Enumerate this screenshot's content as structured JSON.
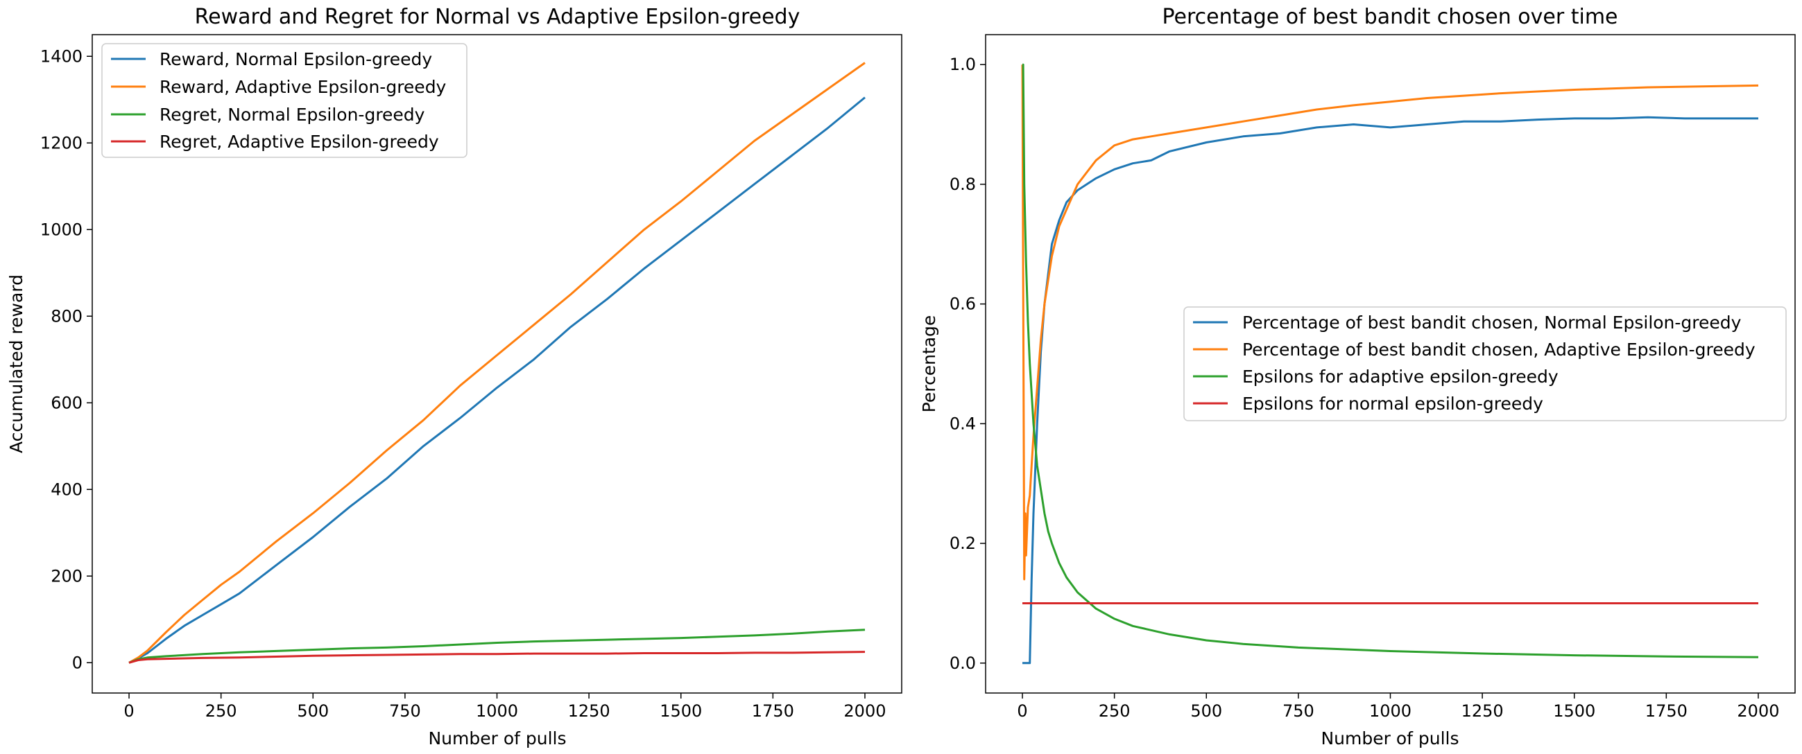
{
  "chart_data": [
    {
      "type": "line",
      "title": "Reward and Regret for Normal vs Adaptive Epsilon-greedy",
      "xlabel": "Number of pulls",
      "ylabel": "Accumulated reward",
      "xlim": [
        -100,
        2100
      ],
      "ylim": [
        -70,
        1450
      ],
      "xticks": [
        "0",
        "250",
        "500",
        "750",
        "1000",
        "1250",
        "1500",
        "1750",
        "2000"
      ],
      "yticks": [
        "0",
        "200",
        "400",
        "600",
        "800",
        "1000",
        "1200",
        "1400"
      ],
      "xtick_values": [
        0,
        250,
        500,
        750,
        1000,
        1250,
        1500,
        1750,
        2000
      ],
      "ytick_values": [
        0,
        200,
        400,
        600,
        800,
        1000,
        1200,
        1400
      ],
      "grid": false,
      "legend": "upper left",
      "series": [
        {
          "name": "Reward, Normal Epsilon-greedy",
          "color": "#1f77b4",
          "x": [
            0,
            25,
            50,
            100,
            150,
            200,
            250,
            300,
            400,
            500,
            600,
            700,
            800,
            900,
            1000,
            1100,
            1200,
            1300,
            1400,
            1500,
            1600,
            1700,
            1800,
            1900,
            2000
          ],
          "y": [
            0,
            10,
            22,
            55,
            85,
            110,
            135,
            160,
            225,
            290,
            360,
            425,
            500,
            565,
            635,
            700,
            775,
            840,
            910,
            975,
            1040,
            1105,
            1170,
            1235,
            1305
          ]
        },
        {
          "name": "Reward, Adaptive Epsilon-greedy",
          "color": "#ff7f0e",
          "x": [
            0,
            25,
            50,
            100,
            150,
            200,
            250,
            300,
            400,
            500,
            600,
            700,
            800,
            900,
            1000,
            1100,
            1200,
            1300,
            1400,
            1500,
            1600,
            1700,
            1800,
            1900,
            2000
          ],
          "y": [
            0,
            12,
            28,
            70,
            110,
            145,
            180,
            210,
            280,
            345,
            415,
            490,
            560,
            640,
            710,
            780,
            850,
            925,
            1000,
            1065,
            1135,
            1205,
            1265,
            1325,
            1385
          ]
        },
        {
          "name": "Regret, Normal Epsilon-greedy",
          "color": "#2ca02c",
          "x": [
            0,
            25,
            50,
            100,
            200,
            300,
            400,
            500,
            600,
            700,
            800,
            900,
            1000,
            1100,
            1200,
            1300,
            1400,
            1500,
            1600,
            1700,
            1800,
            1900,
            2000
          ],
          "y": [
            0,
            8,
            12,
            15,
            20,
            24,
            27,
            30,
            33,
            35,
            38,
            42,
            46,
            49,
            51,
            53,
            55,
            57,
            60,
            63,
            67,
            72,
            76
          ]
        },
        {
          "name": "Regret, Adaptive Epsilon-greedy",
          "color": "#d62728",
          "x": [
            0,
            25,
            50,
            100,
            200,
            300,
            400,
            500,
            600,
            700,
            800,
            900,
            1000,
            1100,
            1200,
            1300,
            1400,
            1500,
            1600,
            1700,
            1800,
            1900,
            2000
          ],
          "y": [
            0,
            6,
            8,
            9,
            11,
            12,
            14,
            16,
            17,
            18,
            19,
            20,
            20,
            21,
            21,
            21,
            22,
            22,
            22,
            23,
            23,
            24,
            25
          ]
        }
      ]
    },
    {
      "type": "line",
      "title": "Percentage of best bandit chosen over time",
      "xlabel": "Number of pulls",
      "ylabel": "Percentage",
      "xlim": [
        -100,
        2100
      ],
      "ylim": [
        -0.05,
        1.05
      ],
      "xticks": [
        "0",
        "250",
        "500",
        "750",
        "1000",
        "1250",
        "1500",
        "1750",
        "2000"
      ],
      "yticks": [
        "0.0",
        "0.2",
        "0.4",
        "0.6",
        "0.8",
        "1.0"
      ],
      "xtick_values": [
        0,
        250,
        500,
        750,
        1000,
        1250,
        1500,
        1750,
        2000
      ],
      "ytick_values": [
        0,
        0.2,
        0.4,
        0.6,
        0.8,
        1.0
      ],
      "grid": false,
      "legend": "center right",
      "series": [
        {
          "name": "Percentage of best bandit chosen, Normal Epsilon-greedy",
          "color": "#1f77b4",
          "x": [
            0,
            10,
            20,
            25,
            30,
            40,
            50,
            60,
            80,
            100,
            120,
            150,
            200,
            250,
            300,
            350,
            400,
            500,
            600,
            700,
            800,
            900,
            1000,
            1100,
            1200,
            1300,
            1400,
            1500,
            1600,
            1700,
            1800,
            1900,
            2000
          ],
          "y": [
            0.0,
            0.0,
            0.0,
            0.14,
            0.25,
            0.4,
            0.52,
            0.6,
            0.7,
            0.74,
            0.77,
            0.79,
            0.81,
            0.825,
            0.835,
            0.84,
            0.855,
            0.87,
            0.88,
            0.885,
            0.895,
            0.9,
            0.895,
            0.9,
            0.905,
            0.905,
            0.908,
            0.91,
            0.91,
            0.912,
            0.91,
            0.91,
            0.91
          ]
        },
        {
          "name": "Percentage of best bandit chosen, Adaptive Epsilon-greedy",
          "color": "#ff7f0e",
          "x": [
            0,
            3,
            5,
            8,
            10,
            15,
            20,
            25,
            30,
            40,
            50,
            60,
            80,
            100,
            150,
            200,
            250,
            300,
            350,
            400,
            500,
            600,
            700,
            800,
            900,
            1000,
            1100,
            1200,
            1300,
            1400,
            1500,
            1600,
            1700,
            1800,
            1900,
            2000
          ],
          "y": [
            1.0,
            0.5,
            0.14,
            0.25,
            0.18,
            0.26,
            0.28,
            0.33,
            0.38,
            0.46,
            0.54,
            0.6,
            0.68,
            0.73,
            0.8,
            0.84,
            0.865,
            0.875,
            0.88,
            0.885,
            0.895,
            0.905,
            0.915,
            0.925,
            0.932,
            0.938,
            0.944,
            0.948,
            0.952,
            0.955,
            0.958,
            0.96,
            0.962,
            0.963,
            0.964,
            0.965
          ]
        },
        {
          "name": "Epsilons for adaptive epsilon-greedy",
          "color": "#2ca02c",
          "x": [
            0,
            2,
            5,
            10,
            15,
            20,
            30,
            40,
            50,
            60,
            70,
            80,
            100,
            120,
            150,
            200,
            250,
            300,
            400,
            500,
            600,
            750,
            1000,
            1250,
            1500,
            1750,
            2000
          ],
          "y": [
            1.0,
            1.0,
            0.8,
            0.67,
            0.57,
            0.5,
            0.4,
            0.33,
            0.29,
            0.25,
            0.22,
            0.2,
            0.167,
            0.143,
            0.118,
            0.091,
            0.074,
            0.062,
            0.048,
            0.038,
            0.032,
            0.026,
            0.02,
            0.016,
            0.013,
            0.011,
            0.01
          ]
        },
        {
          "name": "Epsilons for normal epsilon-greedy",
          "color": "#d62728",
          "x": [
            0,
            2000
          ],
          "y": [
            0.1,
            0.1
          ]
        }
      ]
    }
  ]
}
